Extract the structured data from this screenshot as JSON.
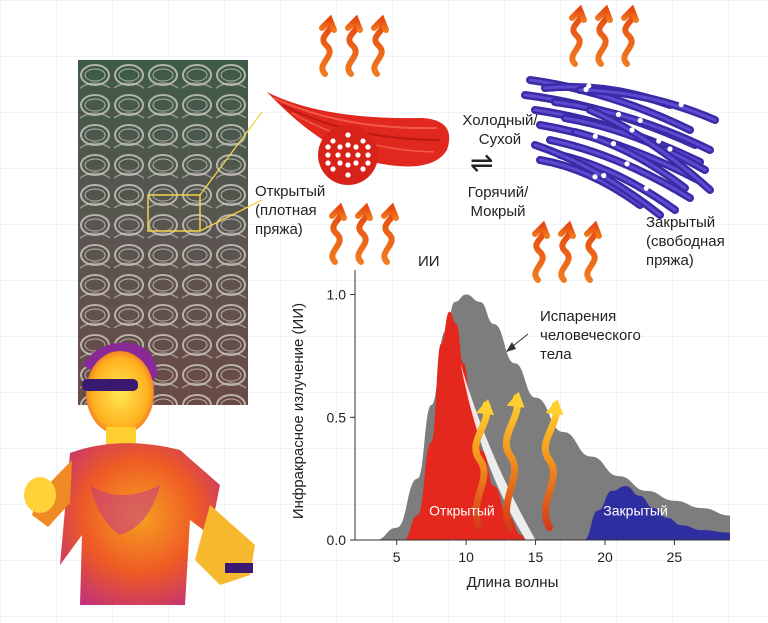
{
  "labels": {
    "open_yarn": [
      "Открытый",
      "(плотная",
      "пряжа)"
    ],
    "closed_yarn": [
      "Закрытый",
      "(свободная",
      "пряжа)"
    ],
    "cold_dry": [
      "Холодный/",
      "Сухой"
    ],
    "hot_wet": [
      "Горячий/",
      "Мокрый"
    ],
    "ir": "ИИ",
    "equilibrium_symbol": "⇌"
  },
  "chart_data": {
    "type": "area",
    "title": "",
    "xlabel": "Длина волны",
    "ylabel": "Инфракрасное излучение (ИИ)",
    "xlim": [
      2,
      29
    ],
    "ylim": [
      0,
      1.1
    ],
    "x_ticks": [
      5,
      10,
      15,
      20,
      25
    ],
    "y_ticks": [
      0.0,
      0.5,
      1.0
    ],
    "y_tick_labels": [
      "0.0",
      "0.5",
      "1.0"
    ],
    "annotation": [
      "Испарения",
      "человеческого",
      "тела"
    ],
    "series": [
      {
        "name": "Испарения человеческого тела",
        "color": "#7d7d7d",
        "x": [
          3.5,
          5.0,
          6.5,
          7.5,
          8.5,
          9.2,
          10.0,
          11.0,
          12.0,
          13.5,
          15.0,
          17.0,
          19.0,
          21.0,
          23.0,
          25.0,
          27.0,
          29.0
        ],
        "y": [
          0.0,
          0.05,
          0.25,
          0.55,
          0.85,
          0.97,
          1.0,
          0.97,
          0.88,
          0.72,
          0.58,
          0.44,
          0.34,
          0.26,
          0.2,
          0.16,
          0.13,
          0.1
        ]
      },
      {
        "name": "Открытый",
        "color": "#e5281e",
        "x": [
          5.5,
          6.5,
          7.5,
          8.2,
          8.8,
          9.3,
          9.8,
          10.5,
          11.2,
          12.0,
          13.0,
          14.0,
          14.3
        ],
        "y": [
          0.0,
          0.1,
          0.4,
          0.8,
          0.93,
          0.88,
          0.72,
          0.52,
          0.36,
          0.22,
          0.1,
          0.02,
          0.0
        ]
      },
      {
        "name": "Закрытый",
        "color": "#2f2ea0",
        "x": [
          18.5,
          19.5,
          20.5,
          21.5,
          22.5,
          23.5,
          24.5,
          25.5,
          27.0,
          29.0
        ],
        "y": [
          0.0,
          0.12,
          0.2,
          0.22,
          0.18,
          0.13,
          0.09,
          0.06,
          0.04,
          0.03
        ]
      }
    ]
  }
}
